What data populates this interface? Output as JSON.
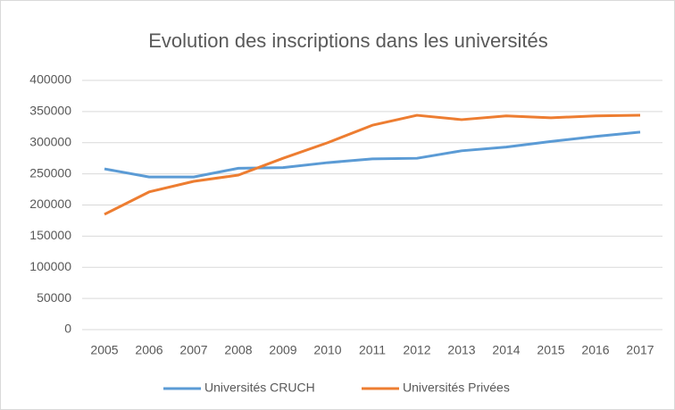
{
  "chart_data": {
    "type": "line",
    "title": "Evolution des inscriptions dans les universités",
    "categories": [
      "2005",
      "2006",
      "2007",
      "2008",
      "2009",
      "2010",
      "2011",
      "2012",
      "2013",
      "2014",
      "2015",
      "2016",
      "2017"
    ],
    "series": [
      {
        "name": "Universités CRUCH",
        "color": "#5b9bd5",
        "values": [
          258000,
          245000,
          245000,
          259000,
          260000,
          268000,
          274000,
          275000,
          287000,
          293000,
          302000,
          310000,
          317000
        ]
      },
      {
        "name": "Universités Privées",
        "color": "#ed7d31",
        "values": [
          185000,
          221000,
          238000,
          248000,
          275000,
          300000,
          328000,
          344000,
          337000,
          343000,
          340000,
          343000,
          344000
        ]
      }
    ],
    "ylim": [
      0,
      400000
    ],
    "yticks": [
      0,
      50000,
      100000,
      150000,
      200000,
      250000,
      300000,
      350000,
      400000
    ],
    "grid": true,
    "legend": "bottom"
  }
}
